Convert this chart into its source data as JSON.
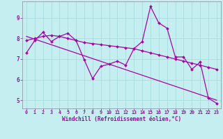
{
  "xlabel": "Windchill (Refroidissement éolien,°C)",
  "bg_color": "#c5eef0",
  "line_color": "#aa00aa",
  "grid_color": "#aadddd",
  "xlim": [
    -0.5,
    23.5
  ],
  "ylim": [
    4.6,
    9.8
  ],
  "xticks": [
    0,
    1,
    2,
    3,
    4,
    5,
    6,
    7,
    8,
    9,
    10,
    11,
    12,
    13,
    14,
    15,
    16,
    17,
    18,
    19,
    20,
    21,
    22,
    23
  ],
  "yticks": [
    5,
    6,
    7,
    8,
    9
  ],
  "line1_x": [
    0,
    1,
    2,
    3,
    4,
    5,
    6,
    7,
    8,
    9,
    10,
    11,
    12,
    13,
    14,
    15,
    16,
    17,
    18,
    19,
    20,
    21,
    22,
    23
  ],
  "line1_y": [
    7.3,
    7.9,
    8.3,
    7.85,
    8.1,
    8.25,
    7.9,
    6.95,
    6.05,
    6.65,
    6.75,
    6.9,
    6.7,
    7.5,
    7.85,
    9.55,
    8.75,
    8.5,
    7.1,
    7.1,
    6.5,
    6.85,
    5.1,
    4.85
  ],
  "line2_x": [
    0,
    1,
    2,
    3,
    4,
    5,
    6,
    7,
    8,
    9,
    10,
    11,
    12,
    13,
    14,
    15,
    16,
    17,
    18,
    19,
    20,
    21,
    22,
    23
  ],
  "line2_y": [
    7.9,
    8.0,
    8.1,
    8.15,
    8.1,
    8.0,
    7.9,
    7.8,
    7.75,
    7.7,
    7.65,
    7.6,
    7.55,
    7.5,
    7.4,
    7.3,
    7.2,
    7.1,
    7.0,
    6.9,
    6.8,
    6.7,
    6.6,
    6.5
  ],
  "line3_x": [
    0,
    23
  ],
  "line3_y": [
    8.1,
    5.0
  ]
}
